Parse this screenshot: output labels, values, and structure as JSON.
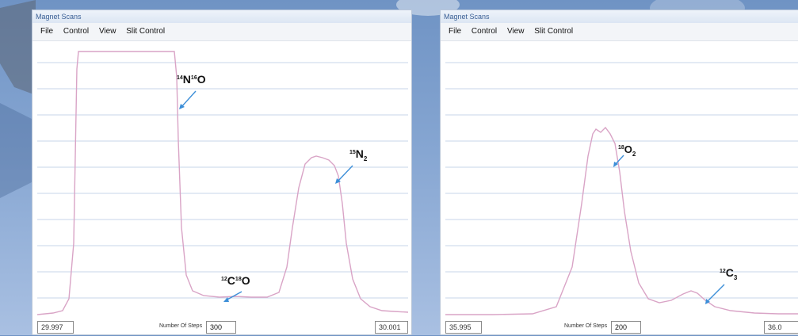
{
  "windows": [
    {
      "title": "Magnet Scans",
      "menu": [
        "File",
        "Control",
        "View",
        "Slit Control"
      ],
      "footer": {
        "start_value": "29.997",
        "steps_label": "Number Of Steps",
        "steps_value": "300",
        "end_value": "30.001"
      },
      "annotations": [
        {
          "mass": "14",
          "element": "N",
          "mass2": "16",
          "element2": "O",
          "sub": ""
        },
        {
          "mass": "15",
          "element": "N",
          "sub": "2"
        },
        {
          "mass": "12",
          "element": "C",
          "mass2": "18",
          "element2": "O",
          "sub": ""
        }
      ]
    },
    {
      "title": "Magnet Scans",
      "menu": [
        "File",
        "Control",
        "View",
        "Slit Control"
      ],
      "footer": {
        "start_value": "35.995",
        "steps_label": "Number Of Steps",
        "steps_value": "200",
        "end_value": "36.0"
      },
      "annotations": [
        {
          "mass": "18",
          "element": "O",
          "sub": "2"
        },
        {
          "mass": "12",
          "element": "C",
          "sub": "3"
        }
      ]
    }
  ],
  "colors": {
    "trace": "#d9a4c6",
    "grid": "#c7d6ea",
    "arrow": "#3d8fd8"
  }
}
